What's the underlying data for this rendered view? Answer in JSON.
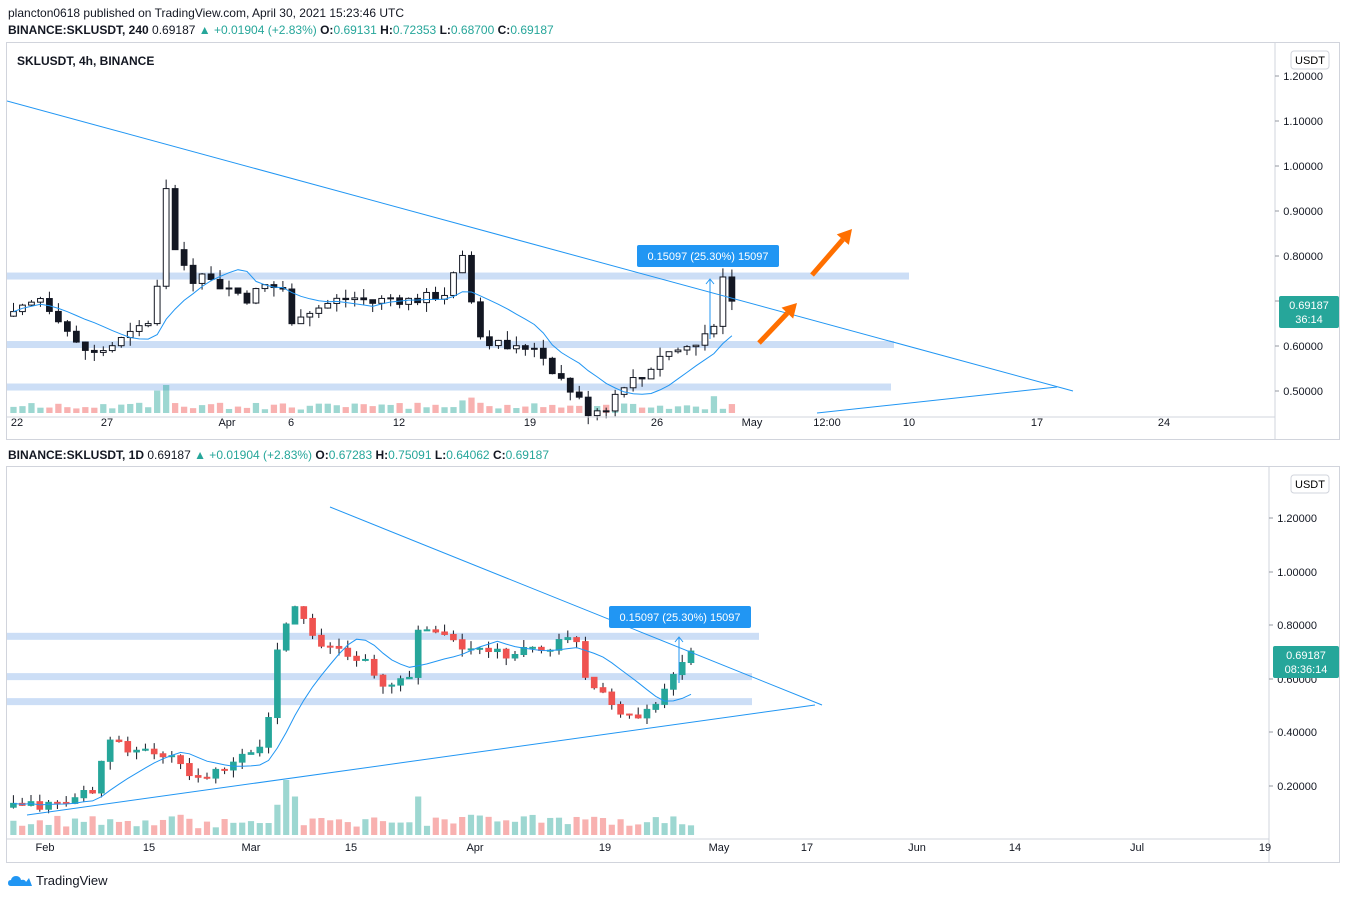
{
  "publish_line": "plancton0618 published on TradingView.com, April 30, 2021 15:23:46 UTC",
  "top_info": {
    "symbol": "BINANCE:SKLUSDT, 240",
    "last": "0.69187",
    "change": "▲ +0.01904 (+2.83%)",
    "o_label": "O:",
    "o": "0.69131",
    "h_label": "H:",
    "h": "0.72353",
    "l_label": "L:",
    "l": "0.68700",
    "c_label": "C:",
    "c": "0.69187"
  },
  "bottom_info": {
    "symbol": "BINANCE:SKLUSDT, 1D",
    "last": "0.69187",
    "change": "▲ +0.01904 (+2.83%)",
    "o_label": "O:",
    "o": "0.67283",
    "h_label": "H:",
    "h": "0.75091",
    "l_label": "L:",
    "l": "0.64062",
    "c_label": "C:",
    "c": "0.69187"
  },
  "footer": {
    "brand": "TradingView"
  },
  "colors": {
    "up": "#26a69a",
    "down": "#ef5350",
    "line": "#2196f3",
    "zone": "#bbd3f3",
    "arrow": "#ff6f00",
    "label": "#2196f3"
  },
  "chart_data": [
    {
      "type": "candlestick",
      "title": "SKLUSDT, 4h, BINANCE",
      "currency": "USDT",
      "y_ticks": [
        "1.20000",
        "1.10000",
        "1.00000",
        "0.90000",
        "0.80000",
        "0.70000",
        "0.60000",
        "0.50000"
      ],
      "ylim": [
        0.455,
        1.23
      ],
      "x_ticks": [
        "22",
        "27",
        "Apr",
        "6",
        "12",
        "19",
        "26",
        "May",
        "12:00",
        "10",
        "17",
        "24"
      ],
      "last_price": "0.69187",
      "countdown": "36:14",
      "measure_label": "0.15097 (25.30%) 15097",
      "zones": [
        0.745,
        0.6,
        0.51
      ],
      "close_path": [
        [
          0,
          0.66
        ],
        [
          3,
          0.7
        ],
        [
          5,
          0.66
        ],
        [
          7,
          0.6
        ],
        [
          9,
          0.58
        ],
        [
          11,
          0.6
        ],
        [
          13,
          0.62
        ],
        [
          15,
          0.65
        ],
        [
          16,
          0.72
        ],
        [
          17,
          0.92
        ],
        [
          18,
          0.8
        ],
        [
          19,
          0.77
        ],
        [
          20,
          0.74
        ],
        [
          22,
          0.735
        ],
        [
          24,
          0.72
        ],
        [
          26,
          0.7
        ],
        [
          28,
          0.725
        ],
        [
          30,
          0.72
        ],
        [
          31,
          0.64
        ],
        [
          32,
          0.67
        ],
        [
          34,
          0.68
        ],
        [
          36,
          0.695
        ],
        [
          38,
          0.7
        ],
        [
          40,
          0.69
        ],
        [
          42,
          0.7
        ],
        [
          44,
          0.695
        ],
        [
          46,
          0.7
        ],
        [
          48,
          0.71
        ],
        [
          50,
          0.78
        ],
        [
          51,
          0.7
        ],
        [
          52,
          0.62
        ],
        [
          54,
          0.6
        ],
        [
          56,
          0.59
        ],
        [
          58,
          0.6
        ],
        [
          60,
          0.55
        ],
        [
          62,
          0.505
        ],
        [
          64,
          0.46
        ],
        [
          66,
          0.47
        ],
        [
          68,
          0.52
        ],
        [
          70,
          0.53
        ],
        [
          72,
          0.58
        ],
        [
          74,
          0.59
        ],
        [
          76,
          0.6
        ],
        [
          78,
          0.65
        ],
        [
          79,
          0.74
        ],
        [
          80,
          0.69187
        ]
      ],
      "volume_spikes": [
        [
          16,
          0.8
        ],
        [
          17,
          1.0
        ],
        [
          50,
          0.45
        ],
        [
          51,
          0.55
        ],
        [
          78,
          0.6
        ]
      ]
    },
    {
      "type": "candlestick",
      "title": "",
      "currency": "USDT",
      "y_ticks": [
        "1.20000",
        "1.00000",
        "0.80000",
        "0.60000",
        "0.40000",
        "0.20000"
      ],
      "ylim": [
        0.03,
        1.34
      ],
      "x_ticks": [
        "Feb",
        "15",
        "Mar",
        "15",
        "Apr",
        "19",
        "May",
        "17",
        "Jun",
        "14",
        "Jul",
        "19"
      ],
      "last_price": "0.69187",
      "countdown": "08:36:14",
      "measure_label": "0.15097 (25.30%) 15097",
      "zones": [
        0.745,
        0.6,
        0.51
      ],
      "close_path": [
        [
          0,
          0.13
        ],
        [
          5,
          0.14
        ],
        [
          7,
          0.16
        ],
        [
          9,
          0.2
        ],
        [
          11,
          0.36
        ],
        [
          13,
          0.34
        ],
        [
          16,
          0.33
        ],
        [
          18,
          0.3
        ],
        [
          20,
          0.25
        ],
        [
          22,
          0.24
        ],
        [
          24,
          0.26
        ],
        [
          26,
          0.31
        ],
        [
          28,
          0.35
        ],
        [
          29,
          0.45
        ],
        [
          30,
          0.7
        ],
        [
          31,
          0.8
        ],
        [
          32,
          0.85
        ],
        [
          34,
          0.75
        ],
        [
          36,
          0.7
        ],
        [
          38,
          0.68
        ],
        [
          40,
          0.66
        ],
        [
          42,
          0.55
        ],
        [
          44,
          0.6
        ],
        [
          45,
          0.6
        ],
        [
          46,
          0.75
        ],
        [
          48,
          0.78
        ],
        [
          50,
          0.72
        ],
        [
          52,
          0.7
        ],
        [
          54,
          0.68
        ],
        [
          56,
          0.68
        ],
        [
          58,
          0.7
        ],
        [
          60,
          0.7
        ],
        [
          62,
          0.72
        ],
        [
          64,
          0.74
        ],
        [
          65,
          0.6
        ],
        [
          67,
          0.55
        ],
        [
          69,
          0.48
        ],
        [
          71,
          0.45
        ],
        [
          73,
          0.52
        ],
        [
          75,
          0.6
        ],
        [
          76,
          0.64
        ],
        [
          77,
          0.69187
        ]
      ],
      "volume_spikes": [
        [
          30,
          0.55
        ],
        [
          31,
          1.0
        ],
        [
          32,
          0.7
        ],
        [
          46,
          0.7
        ]
      ]
    }
  ]
}
